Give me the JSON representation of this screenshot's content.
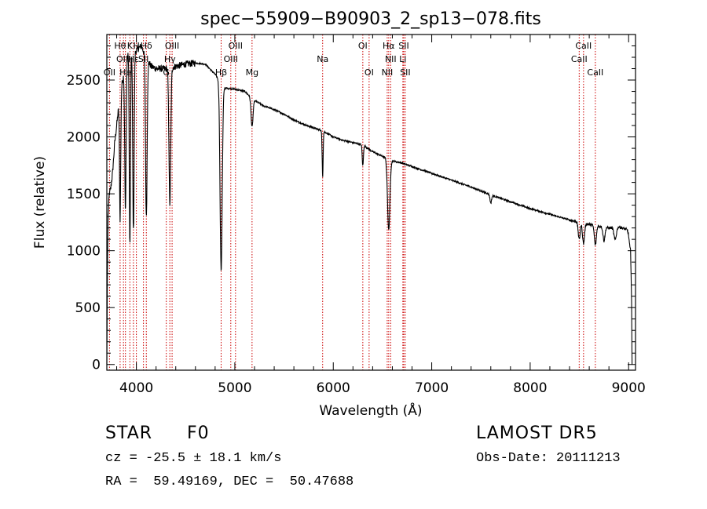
{
  "chart_data": {
    "type": "line",
    "title": "spec−55909−B90903_2_sp13−078.fits",
    "xlabel": "Wavelength (Å)",
    "ylabel": "Flux (relative)",
    "xlim": [
      3700,
      9070
    ],
    "ylim": [
      -50,
      2900
    ],
    "xticks": [
      4000,
      5000,
      6000,
      7000,
      8000,
      9000
    ],
    "yticks": [
      0,
      500,
      1000,
      1500,
      2000,
      2500
    ],
    "grid": false,
    "line_color": "#000000",
    "marker_color": "#cc0000",
    "continuum": [
      [
        3700,
        0
      ],
      [
        3705,
        700
      ],
      [
        3712,
        1300
      ],
      [
        3725,
        1500
      ],
      [
        3740,
        1550
      ],
      [
        3760,
        1700
      ],
      [
        3780,
        1950
      ],
      [
        3800,
        2100
      ],
      [
        3830,
        2350
      ],
      [
        3860,
        2500
      ],
      [
        3900,
        2700
      ],
      [
        3950,
        2780
      ],
      [
        4000,
        2760
      ],
      [
        4050,
        2800
      ],
      [
        4100,
        2700
      ],
      [
        4150,
        2620
      ],
      [
        4200,
        2600
      ],
      [
        4250,
        2600
      ],
      [
        4300,
        2600
      ],
      [
        4400,
        2620
      ],
      [
        4500,
        2640
      ],
      [
        4600,
        2650
      ],
      [
        4700,
        2640
      ],
      [
        4800,
        2550
      ],
      [
        4900,
        2430
      ],
      [
        5000,
        2420
      ],
      [
        5100,
        2400
      ],
      [
        5200,
        2320
      ],
      [
        5300,
        2270
      ],
      [
        5400,
        2240
      ],
      [
        5500,
        2200
      ],
      [
        5600,
        2150
      ],
      [
        5700,
        2110
      ],
      [
        5800,
        2080
      ],
      [
        5900,
        2050
      ],
      [
        6000,
        2000
      ],
      [
        6100,
        1970
      ],
      [
        6200,
        1950
      ],
      [
        6300,
        1930
      ],
      [
        6400,
        1870
      ],
      [
        6500,
        1830
      ],
      [
        6600,
        1790
      ],
      [
        6700,
        1770
      ],
      [
        6800,
        1740
      ],
      [
        6900,
        1710
      ],
      [
        7000,
        1680
      ],
      [
        7200,
        1620
      ],
      [
        7400,
        1560
      ],
      [
        7600,
        1490
      ],
      [
        7800,
        1430
      ],
      [
        8000,
        1370
      ],
      [
        8200,
        1320
      ],
      [
        8400,
        1270
      ],
      [
        8600,
        1230
      ],
      [
        8800,
        1200
      ],
      [
        8900,
        1210
      ],
      [
        9000,
        1180
      ],
      [
        9020,
        1100
      ],
      [
        9030,
        600
      ],
      [
        9035,
        0
      ]
    ],
    "absorption_lines": [
      {
        "center": 3835,
        "depth": 1100,
        "width": 6
      },
      {
        "center": 3889,
        "depth": 1300,
        "width": 7
      },
      {
        "center": 3934,
        "depth": 1700,
        "width": 6
      },
      {
        "center": 3970,
        "depth": 1600,
        "width": 7
      },
      {
        "center": 4101,
        "depth": 1400,
        "width": 8
      },
      {
        "center": 4340,
        "depth": 1200,
        "width": 9
      },
      {
        "center": 4861,
        "depth": 1650,
        "width": 11
      },
      {
        "center": 5175,
        "depth": 250,
        "width": 10
      },
      {
        "center": 5892,
        "depth": 400,
        "width": 5
      },
      {
        "center": 6300,
        "depth": 180,
        "width": 6
      },
      {
        "center": 6563,
        "depth": 620,
        "width": 12
      },
      {
        "center": 7600,
        "depth": 70,
        "width": 8
      },
      {
        "center": 8498,
        "depth": 150,
        "width": 10
      },
      {
        "center": 8542,
        "depth": 180,
        "width": 10
      },
      {
        "center": 8662,
        "depth": 170,
        "width": 10
      },
      {
        "center": 8750,
        "depth": 120,
        "width": 10
      },
      {
        "center": 8863,
        "depth": 110,
        "width": 12
      },
      {
        "center": 9015,
        "depth": 100,
        "width": 12
      }
    ],
    "line_markers": [
      {
        "x": 3727,
        "label": "OII",
        "row": 3
      },
      {
        "x": 3835,
        "label": "Hθ",
        "row": 1
      },
      {
        "x": 3869,
        "label": "OIII",
        "row": 2
      },
      {
        "x": 3889,
        "label": "He",
        "row": 3
      },
      {
        "x": 3934,
        "label": "K",
        "row": 1
      },
      {
        "x": 3970,
        "label": "Hε",
        "row": 2
      },
      {
        "x": 4000,
        "label": "H",
        "row": 1
      },
      {
        "x": 4072,
        "label": "SII",
        "row": 2
      },
      {
        "x": 4101,
        "label": "Hδ",
        "row": 1
      },
      {
        "x": 4304,
        "label": "G",
        "row": 3
      },
      {
        "x": 4340,
        "label": "Hγ",
        "row": 2
      },
      {
        "x": 4363,
        "label": "OIII",
        "row": 1
      },
      {
        "x": 4861,
        "label": "Hβ",
        "row": 3
      },
      {
        "x": 4959,
        "label": "OIII",
        "row": 2
      },
      {
        "x": 5007,
        "label": "OIII",
        "row": 1
      },
      {
        "x": 5175,
        "label": "Mg",
        "row": 3
      },
      {
        "x": 5892,
        "label": "Na",
        "row": 2
      },
      {
        "x": 6300,
        "label": "OI",
        "row": 1
      },
      {
        "x": 6364,
        "label": "OI",
        "row": 3
      },
      {
        "x": 6548,
        "label": "NII",
        "row": 3
      },
      {
        "x": 6563,
        "label": "Hα",
        "row": 1
      },
      {
        "x": 6583,
        "label": "NII",
        "row": 2
      },
      {
        "x": 6707,
        "label": "Li",
        "row": 2
      },
      {
        "x": 6716,
        "label": "SII",
        "row": 1
      },
      {
        "x": 6731,
        "label": "SII",
        "row": 3
      },
      {
        "x": 8498,
        "label": "CaII",
        "row": 2
      },
      {
        "x": 8542,
        "label": "CaII",
        "row": 1
      },
      {
        "x": 8662,
        "label": "CaII",
        "row": 3
      }
    ]
  },
  "footer": {
    "star_type": "STAR",
    "subclass": "F0",
    "survey": "LAMOST DR5",
    "velocity": "cz = -25.5 ± 18.1 km/s",
    "obs_date": "Obs-Date: 20111213",
    "coords": "RA =  59.49169, DEC =  50.47688"
  }
}
